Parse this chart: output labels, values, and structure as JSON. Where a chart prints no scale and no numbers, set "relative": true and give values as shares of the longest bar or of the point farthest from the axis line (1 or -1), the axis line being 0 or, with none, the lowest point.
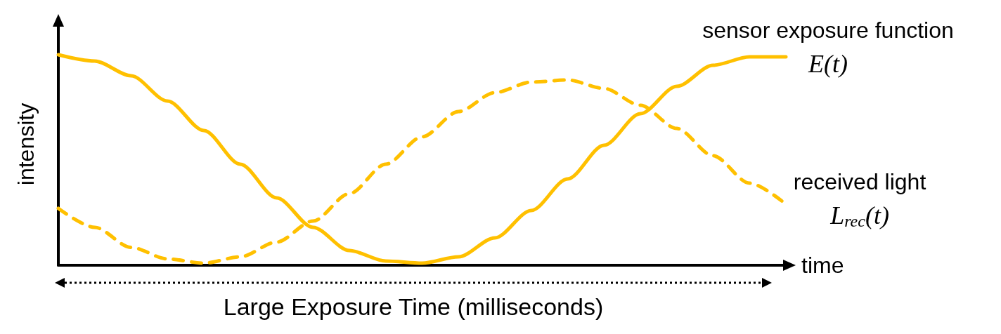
{
  "chart_data": {
    "type": "line",
    "relative": true,
    "xlabel": "time",
    "ylabel": "intensity",
    "annotations": [
      "Large Exposure Time (milliseconds)"
    ],
    "marker": "none",
    "categories": [
      null,
      null,
      null,
      null,
      null,
      null,
      null,
      null,
      null,
      null,
      null,
      null,
      null,
      null,
      null,
      null,
      null,
      null,
      null,
      null,
      null
    ],
    "series": [
      {
        "name": "sensor exposure function\nE(t)",
        "color": "#ffc000",
        "line_style": "solid",
        "values": [
          1.0,
          0.97,
          0.9,
          0.78,
          0.64,
          0.48,
          0.32,
          0.18,
          0.07,
          0.02,
          0.01,
          0.04,
          0.13,
          0.26,
          0.41,
          0.57,
          0.72,
          0.85,
          0.95,
          0.99,
          0.99
        ]
      },
      {
        "name": "received light\nL$_{rec}$(t)",
        "color": "#ffc000",
        "line_style": "dashed",
        "values": [
          0.27,
          0.18,
          0.085,
          0.03,
          0.01,
          0.04,
          0.11,
          0.21,
          0.34,
          0.48,
          0.61,
          0.73,
          0.82,
          0.87,
          0.88,
          0.84,
          0.76,
          0.65,
          0.52,
          0.39,
          0.29
        ]
      }
    ]
  }
}
